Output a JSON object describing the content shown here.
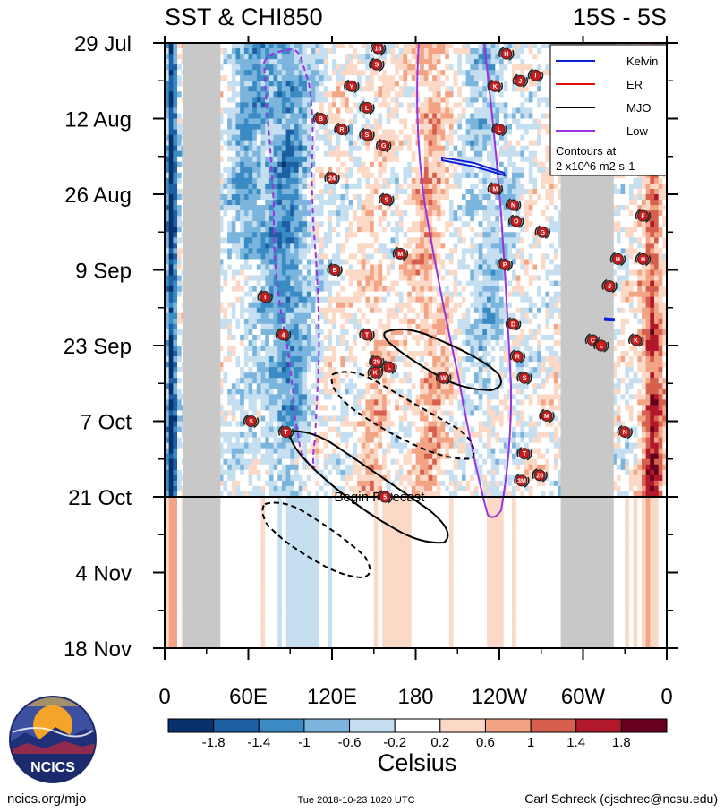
{
  "chart_data": {
    "type": "heatmap",
    "title_left": "SST & CHI850",
    "title_right": "15S - 5S",
    "x_ticks": [
      "0",
      "60E",
      "120E",
      "180",
      "120W",
      "60W",
      "0"
    ],
    "x_tick_lon": [
      0,
      60,
      120,
      180,
      240,
      300,
      360
    ],
    "xlim_lon": [
      0,
      360
    ],
    "y_ticks": [
      "29 Jul",
      "12 Aug",
      "26 Aug",
      "9 Sep",
      "23 Sep",
      "7 Oct",
      "21 Oct",
      "4 Nov",
      "18 Nov"
    ],
    "y_tick_day": [
      0,
      14,
      28,
      42,
      56,
      70,
      84,
      98,
      112
    ],
    "ylim_day": [
      0,
      112
    ],
    "forecast_start_day": 84,
    "forecast_label": "Begin Forecast",
    "land_masks_lon": [
      [
        13,
        40
      ],
      [
        284,
        322
      ]
    ],
    "colorbar": {
      "label": "Celsius",
      "tick_labels": [
        "-1.8",
        "-1.4",
        "-1",
        "-0.6",
        "-0.2",
        "0.2",
        "0.6",
        "1",
        "1.4",
        "1.8"
      ],
      "colors": [
        "#08306b",
        "#1c5fa3",
        "#3a8bc4",
        "#7bb5dd",
        "#c5dff0",
        "#ffffff",
        "#fbd9c6",
        "#f2a484",
        "#d6604d",
        "#b2182b",
        "#67001f"
      ]
    },
    "legend": {
      "entries": [
        {
          "label": "Kelvin",
          "color": "#0a1fd9"
        },
        {
          "label": "ER",
          "color": "#e01010"
        },
        {
          "label": "MJO",
          "color": "#000000"
        },
        {
          "label": "Low",
          "color": "#9933e0"
        }
      ],
      "note_line1": "Contours at",
      "note_line2": "2 x10^6 m2 s-1",
      "position": "top-right"
    },
    "storm_markers": [
      {
        "label": "18",
        "lon": 153,
        "day": 1
      },
      {
        "label": "S",
        "lon": 152,
        "day": 4
      },
      {
        "label": "Y",
        "lon": 134,
        "day": 8
      },
      {
        "label": "L",
        "lon": 145,
        "day": 12
      },
      {
        "label": "B",
        "lon": 112,
        "day": 14
      },
      {
        "label": "R",
        "lon": 127,
        "day": 16
      },
      {
        "label": "S",
        "lon": 145,
        "day": 17
      },
      {
        "label": "G",
        "lon": 157,
        "day": 19
      },
      {
        "label": "24",
        "lon": 120,
        "day": 25
      },
      {
        "label": "S",
        "lon": 159,
        "day": 29
      },
      {
        "label": "M",
        "lon": 169,
        "day": 39
      },
      {
        "label": "B",
        "lon": 122,
        "day": 42
      },
      {
        "label": "I",
        "lon": 72,
        "day": 47
      },
      {
        "label": "4",
        "lon": 85,
        "day": 54
      },
      {
        "label": "T",
        "lon": 145,
        "day": 54
      },
      {
        "label": "29",
        "lon": 152,
        "day": 59
      },
      {
        "label": "K",
        "lon": 151,
        "day": 61
      },
      {
        "label": "L",
        "lon": 161,
        "day": 60
      },
      {
        "label": "W",
        "lon": 200,
        "day": 62
      },
      {
        "label": "H",
        "lon": 245,
        "day": 2
      },
      {
        "label": "K",
        "lon": 237,
        "day": 8
      },
      {
        "label": "J",
        "lon": 255,
        "day": 7
      },
      {
        "label": "I",
        "lon": 266,
        "day": 6
      },
      {
        "label": "L",
        "lon": 240,
        "day": 16
      },
      {
        "label": "M",
        "lon": 237,
        "day": 27
      },
      {
        "label": "N",
        "lon": 250,
        "day": 30
      },
      {
        "label": "G",
        "lon": 271,
        "day": 35
      },
      {
        "label": "O",
        "lon": 252,
        "day": 33
      },
      {
        "label": "P",
        "lon": 244,
        "day": 41
      },
      {
        "label": "D",
        "lon": 250,
        "day": 52
      },
      {
        "label": "R",
        "lon": 253,
        "day": 58
      },
      {
        "label": "S",
        "lon": 258,
        "day": 62
      },
      {
        "label": "M",
        "lon": 274,
        "day": 69
      },
      {
        "label": "T",
        "lon": 258,
        "day": 76
      },
      {
        "label": "3M",
        "lon": 256,
        "day": 81
      },
      {
        "label": "20",
        "lon": 269,
        "day": 80
      },
      {
        "label": "F",
        "lon": 343,
        "day": 32
      },
      {
        "label": "H",
        "lon": 325,
        "day": 40
      },
      {
        "label": "H",
        "lon": 343,
        "day": 40
      },
      {
        "label": "J",
        "lon": 319,
        "day": 45
      },
      {
        "label": "C",
        "lon": 307,
        "day": 55
      },
      {
        "label": "L",
        "lon": 313,
        "day": 56
      },
      {
        "label": "K",
        "lon": 338,
        "day": 55
      },
      {
        "label": "N",
        "lon": 330,
        "day": 72
      },
      {
        "label": "S",
        "lon": 62,
        "day": 70
      },
      {
        "label": "T",
        "lon": 87,
        "day": 72
      },
      {
        "label": "5",
        "lon": 158,
        "day": 84
      }
    ]
  },
  "footer": {
    "logo_text": "NCICS",
    "left": "ncics.org/mjo",
    "center": "Tue 2018-10-23 1020 UTC",
    "right": "Carl Schreck (cjschrec@ncsu.edu)"
  }
}
